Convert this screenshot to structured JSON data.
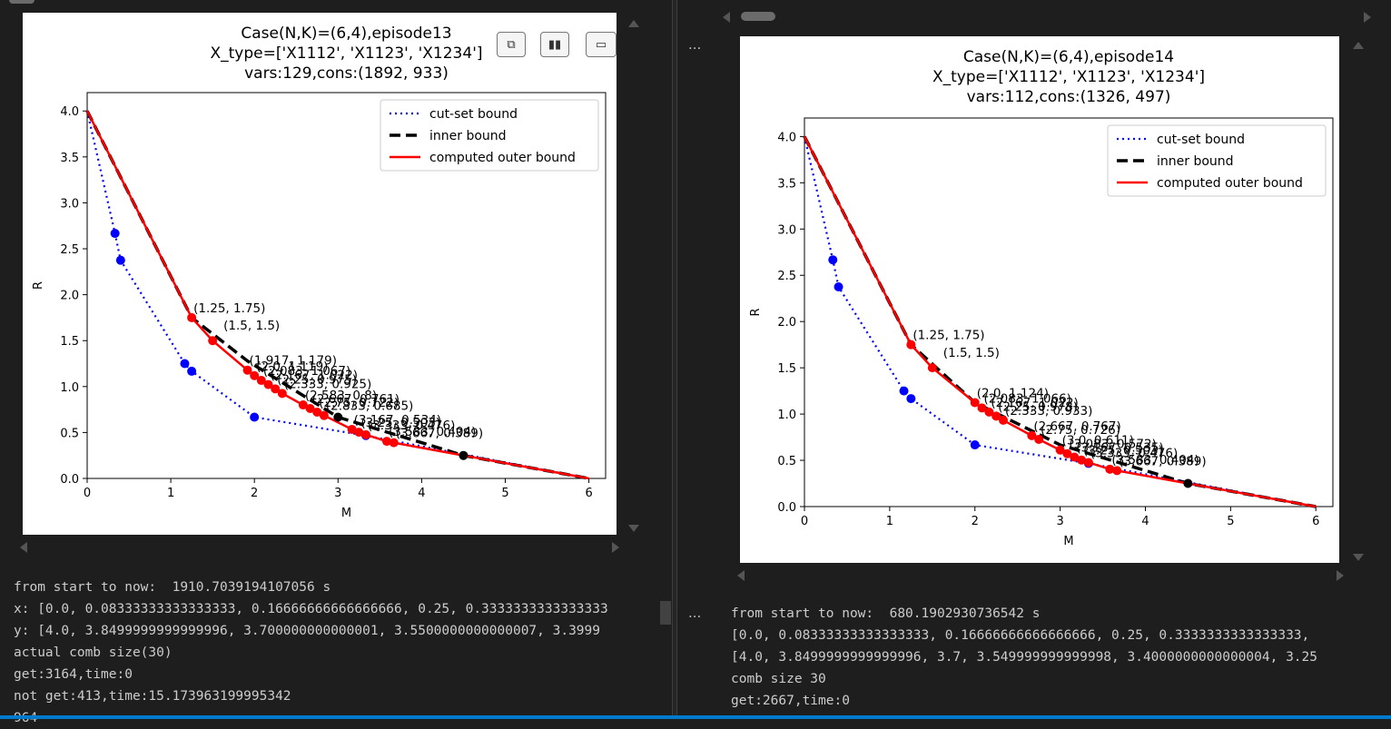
{
  "colors": {
    "cutset": "#0000ff",
    "inner": "#000000",
    "outer": "#ff0000",
    "bg": "#1e1e1e",
    "text": "#cccccc"
  },
  "toolbar": {
    "icons": [
      "copy-icon",
      "chart-icon",
      "save-icon"
    ]
  },
  "cells": [
    {
      "ellipsis": "",
      "chart_data": {
        "type": "line",
        "title": [
          "Case(N,K)=(6,4),episode13",
          "X_type=['X1112', 'X1123', 'X1234']",
          "vars:129,cons:(1892, 933)"
        ],
        "xlabel": "M",
        "ylabel": "R",
        "xlim": [
          0,
          6.2
        ],
        "ylim": [
          0,
          4.2
        ],
        "xticks": [
          0,
          1,
          2,
          3,
          4,
          5,
          6
        ],
        "yticks": [
          0.0,
          0.5,
          1.0,
          1.5,
          2.0,
          2.5,
          3.0,
          3.5,
          4.0
        ],
        "legend_position": "upper right",
        "series": [
          {
            "name": "cut-set bound",
            "style": "dotted",
            "x": [
              0,
              0.333,
              0.4,
              1.167,
              1.25,
              2.0,
              3.333,
              6.0
            ],
            "y": [
              4.0,
              2.667,
              2.375,
              1.25,
              1.167,
              0.667,
              0.467,
              0.0
            ]
          },
          {
            "name": "inner bound",
            "style": "dashed",
            "x": [
              0,
              1.25,
              1.917,
              3.0,
              4.5,
              6.0
            ],
            "y": [
              4.0,
              1.75,
              1.279,
              0.667,
              0.25,
              0.0
            ]
          },
          {
            "name": "computed outer bound",
            "style": "solid",
            "x": [
              0,
              1.25,
              1.5,
              1.917,
              2.0,
              2.083,
              2.167,
              2.25,
              2.333,
              2.583,
              2.667,
              2.75,
              2.833,
              3.167,
              3.25,
              3.333,
              3.583,
              3.667,
              6.0
            ],
            "y": [
              4.0,
              1.75,
              1.5,
              1.179,
              1.119,
              1.067,
              1.022,
              0.975,
              0.925,
              0.8,
              0.761,
              0.722,
              0.685,
              0.534,
              0.503,
              0.476,
              0.404,
              0.389,
              0.0
            ]
          }
        ],
        "blue_points": {
          "x": [
            0.333,
            0.4,
            1.167,
            1.25,
            2.0,
            3.333
          ],
          "y": [
            2.667,
            2.375,
            1.25,
            1.167,
            0.667,
            0.467
          ]
        },
        "black_points": {
          "x": [
            3.0,
            4.5
          ],
          "y": [
            0.667,
            0.25
          ]
        },
        "red_points": {
          "x": [
            1.25,
            1.5,
            1.917,
            2.0,
            2.083,
            2.167,
            2.25,
            2.333,
            2.583,
            2.667,
            2.75,
            2.833,
            3.167,
            3.25,
            3.333,
            3.583,
            3.667
          ],
          "y": [
            1.75,
            1.5,
            1.179,
            1.119,
            1.067,
            1.022,
            0.975,
            0.925,
            0.8,
            0.761,
            0.722,
            0.685,
            0.534,
            0.503,
            0.476,
            0.404,
            0.389
          ]
        },
        "annotations": [
          {
            "text": "(1.25, 1.75)",
            "x": 1.25,
            "y": 1.75
          },
          {
            "text": "(1.5, 1.5)",
            "x": 1.5,
            "y": 1.5
          },
          {
            "text": "(1.917, 1.179)",
            "x": 1.917,
            "y": 1.179
          },
          {
            "text": "(2.0, 1.119)",
            "x": 2.0,
            "y": 1.119
          },
          {
            "text": "(2.083, 1.067)",
            "x": 2.083,
            "y": 1.067
          },
          {
            "text": "(2.167, 1.022)",
            "x": 2.167,
            "y": 1.022
          },
          {
            "text": "(2.25, 0.975)",
            "x": 2.25,
            "y": 0.975
          },
          {
            "text": "(2.333, 0.925)",
            "x": 2.333,
            "y": 0.925
          },
          {
            "text": "(2.583, 0.8)",
            "x": 2.583,
            "y": 0.8
          },
          {
            "text": "(2.667, 0.761)",
            "x": 2.667,
            "y": 0.761
          },
          {
            "text": "(2.75, 0.722)",
            "x": 2.75,
            "y": 0.722
          },
          {
            "text": "(2.833, 0.685)",
            "x": 2.833,
            "y": 0.685
          },
          {
            "text": "(3.167, 0.534)",
            "x": 3.167,
            "y": 0.534
          },
          {
            "text": "(3.25, 0.503)",
            "x": 3.25,
            "y": 0.503
          },
          {
            "text": "(3.333, 0.476)",
            "x": 3.333,
            "y": 0.476
          },
          {
            "text": "(3.583, 0.404)",
            "x": 3.583,
            "y": 0.404
          },
          {
            "text": "(3.667, 0.389)",
            "x": 3.667,
            "y": 0.389
          }
        ]
      },
      "output": [
        "from start to now:  1910.7039194107056 s",
        "x: [0.0, 0.08333333333333333, 0.16666666666666666, 0.25, 0.3333333333333333",
        "y: [4.0, 3.8499999999999996, 3.700000000000001, 3.5500000000000007, 3.3999",
        "actual comb size(30)",
        "get:3164,time:0",
        "not get:413,time:15.173963199995342",
        "964"
      ]
    },
    {
      "ellipsis": "...",
      "chart_data": {
        "type": "line",
        "title": [
          "Case(N,K)=(6,4),episode14",
          "X_type=['X1112', 'X1123', 'X1234']",
          "vars:112,cons:(1326, 497)"
        ],
        "xlabel": "M",
        "ylabel": "R",
        "xlim": [
          0,
          6.2
        ],
        "ylim": [
          0,
          4.2
        ],
        "xticks": [
          0,
          1,
          2,
          3,
          4,
          5,
          6
        ],
        "yticks": [
          0.0,
          0.5,
          1.0,
          1.5,
          2.0,
          2.5,
          3.0,
          3.5,
          4.0
        ],
        "legend_position": "upper right",
        "series": [
          {
            "name": "cut-set bound",
            "style": "dotted",
            "x": [
              0,
              0.333,
              0.4,
              1.167,
              1.25,
              2.0,
              3.333,
              6.0
            ],
            "y": [
              4.0,
              2.667,
              2.375,
              1.25,
              1.167,
              0.667,
              0.467,
              0.0
            ]
          },
          {
            "name": "inner bound",
            "style": "dashed",
            "x": [
              0,
              1.25,
              2.0,
              3.0,
              4.5,
              6.0
            ],
            "y": [
              4.0,
              1.75,
              1.124,
              0.667,
              0.25,
              0.0
            ]
          },
          {
            "name": "computed outer bound",
            "style": "solid",
            "x": [
              0,
              1.25,
              1.5,
              2.0,
              2.083,
              2.167,
              2.25,
              2.333,
              2.667,
              2.75,
              3.0,
              3.083,
              3.167,
              3.25,
              3.333,
              3.583,
              3.667,
              6.0
            ],
            "y": [
              4.0,
              1.75,
              1.5,
              1.124,
              1.066,
              1.022,
              0.978,
              0.933,
              0.767,
              0.726,
              0.611,
              0.572,
              0.535,
              0.503,
              0.476,
              0.404,
              0.389,
              0.0
            ]
          }
        ],
        "blue_points": {
          "x": [
            0.333,
            0.4,
            1.167,
            1.25,
            2.0,
            3.333
          ],
          "y": [
            2.667,
            2.375,
            1.25,
            1.167,
            0.667,
            0.467
          ]
        },
        "black_points": {
          "x": [
            4.5
          ],
          "y": [
            0.25
          ]
        },
        "red_points": {
          "x": [
            1.25,
            1.5,
            2.0,
            2.083,
            2.167,
            2.25,
            2.333,
            2.667,
            2.75,
            3.0,
            3.083,
            3.167,
            3.25,
            3.333,
            3.583,
            3.667
          ],
          "y": [
            1.75,
            1.5,
            1.124,
            1.066,
            1.022,
            0.978,
            0.933,
            0.767,
            0.726,
            0.611,
            0.572,
            0.535,
            0.503,
            0.476,
            0.404,
            0.389
          ]
        },
        "annotations": [
          {
            "text": "(1.25, 1.75)",
            "x": 1.25,
            "y": 1.75
          },
          {
            "text": "(1.5, 1.5)",
            "x": 1.5,
            "y": 1.5
          },
          {
            "text": "(2.0, 1.124)",
            "x": 2.0,
            "y": 1.124
          },
          {
            "text": "(2.083, 1.066)",
            "x": 2.083,
            "y": 1.066
          },
          {
            "text": "(2.167, 1.022)",
            "x": 2.167,
            "y": 1.022
          },
          {
            "text": "(2.25, 0.978)",
            "x": 2.25,
            "y": 0.978
          },
          {
            "text": "(2.333, 0.933)",
            "x": 2.333,
            "y": 0.933
          },
          {
            "text": "(2.667, 0.767)",
            "x": 2.667,
            "y": 0.767
          },
          {
            "text": "(2.75, 0.726)",
            "x": 2.75,
            "y": 0.726
          },
          {
            "text": "(3.0, 0.611)",
            "x": 3.0,
            "y": 0.611
          },
          {
            "text": "(3.083, 0.572)",
            "x": 3.083,
            "y": 0.572
          },
          {
            "text": "(3.167, 0.535)",
            "x": 3.167,
            "y": 0.535
          },
          {
            "text": "(3.25, 0.503)",
            "x": 3.25,
            "y": 0.503
          },
          {
            "text": "(3.333, 0.476)",
            "x": 3.333,
            "y": 0.476
          },
          {
            "text": "(3.583, 0.404)",
            "x": 3.583,
            "y": 0.404
          },
          {
            "text": "(3.667, 0.389)",
            "x": 3.667,
            "y": 0.389
          }
        ]
      },
      "output_ellipsis": "...",
      "output": [
        "from start to now:  680.1902930736542 s",
        "[0.0, 0.08333333333333333, 0.16666666666666666, 0.25, 0.3333333333333333,",
        "[4.0, 3.8499999999999996, 3.7, 3.549999999999998, 3.4000000000000004, 3.25",
        "comb size 30",
        "get:2667,time:0"
      ]
    }
  ]
}
